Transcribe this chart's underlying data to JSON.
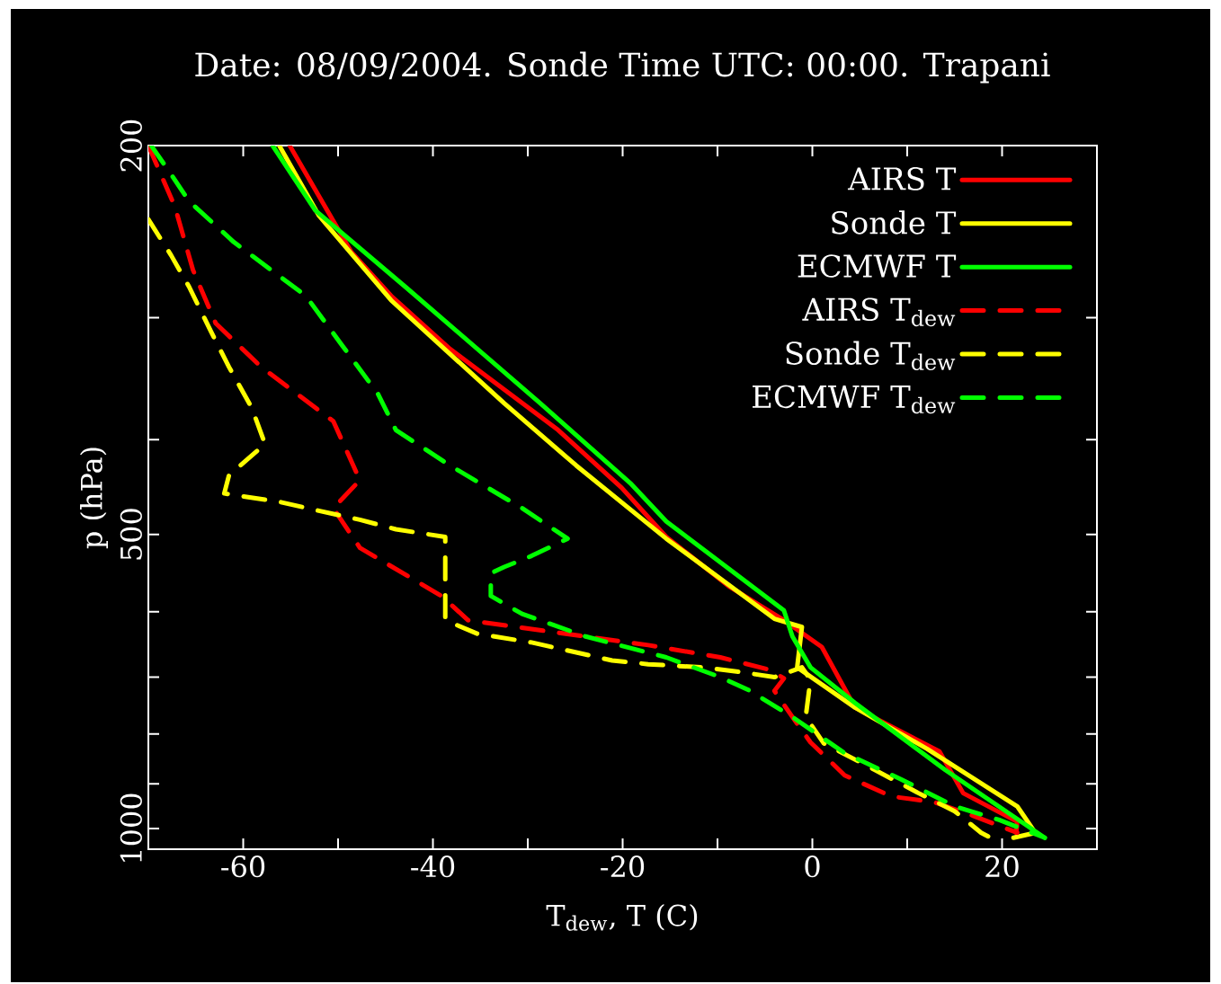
{
  "chart_data": {
    "type": "line",
    "title": "Date: 08/09/2004. Sonde Time UTC: 00:00. Trapani",
    "xlabel": "T$_{dew}$, T (C)",
    "ylabel": "p (hPa)",
    "log": "y",
    "legend": "top right",
    "grid": false,
    "xlim": [
      -70,
      30
    ],
    "ylim": [
      1050,
      200
    ],
    "xticks": [
      {
        "value": -70,
        "label": null
      },
      -60,
      {
        "value": -50,
        "label": null
      },
      -40,
      {
        "value": -30,
        "label": null
      },
      -20,
      {
        "value": -10,
        "label": null
      },
      0,
      {
        "value": 10,
        "label": null
      },
      20,
      {
        "value": 30,
        "label": null
      }
    ],
    "yticks": [
      200,
      {
        "value": 300,
        "label": null
      },
      {
        "value": 400,
        "label": null
      },
      500,
      {
        "value": 600,
        "label": null
      },
      {
        "value": 700,
        "label": null
      },
      {
        "value": 800,
        "label": null
      },
      {
        "value": 900,
        "label": null
      },
      1000
    ],
    "series": [
      {
        "name": "AIRS T",
        "color": "#ff0000",
        "line_style": "solid",
        "x": [
          -55.1,
          -48.6,
          -44.4,
          -38.2,
          -26.8,
          -20.1,
          -15.4,
          -8.7,
          -3.0,
          1.0,
          4.5,
          13.4,
          15.9,
          21.6,
          21.5
        ],
        "values": [
          200,
          257,
          285,
          323,
          391,
          448,
          503,
          566,
          612,
          652,
          752,
          834,
          920,
          984,
          1010
        ]
      },
      {
        "name": "Sonde T",
        "color": "#ffff00",
        "line_style": "solid",
        "x": [
          -56.2,
          -52.0,
          -44.4,
          -32.5,
          -24.9,
          -15.4,
          -4.0,
          -1.1,
          -1.6,
          4.5,
          12.1,
          21.6,
          23.5,
          21.2
        ],
        "values": [
          200,
          236,
          288,
          367,
          425,
          505,
          610,
          622,
          684,
          752,
          829,
          949,
          1010,
          1022
        ]
      },
      {
        "name": "ECMWF T",
        "color": "#00ff00",
        "line_style": "solid",
        "x": [
          -56.9,
          -52.4,
          -42.9,
          -28.7,
          -19.2,
          -15.4,
          -3.0,
          -2.1,
          -0.2,
          4.5,
          14.0,
          24.5
        ],
        "values": [
          200,
          233,
          279,
          367,
          443,
          485,
          598,
          636,
          684,
          744,
          871,
          1022
        ]
      },
      {
        "name": "AIRS T$_{dew}$",
        "color": "#ff0000",
        "line_style": "dashed",
        "x": [
          -70,
          -67.2,
          -65.3,
          -62.9,
          -58.1,
          -50.5,
          -47.7,
          -50.5,
          -47.7,
          -39.1,
          -36.3,
          -29.6,
          -17.3,
          -9.7,
          -4.5,
          -3.0,
          -4.0,
          -2.1,
          -0.2,
          3.4,
          8.3,
          12.9,
          16.9,
          21.6
        ],
        "values": [
          200,
          231,
          268,
          304,
          337,
          383,
          440,
          470,
          516,
          578,
          612,
          625,
          649,
          668,
          688,
          702,
          723,
          769,
          816,
          882,
          927,
          940,
          970,
          1010
        ]
      },
      {
        "name": "Sonde T$_{dew}$",
        "color": "#ffff00",
        "line_style": "dashed",
        "x": [
          -70,
          -67.6,
          -65.7,
          -63.4,
          -61.5,
          -59.1,
          -57.7,
          -61.5,
          -62,
          -56.2,
          -52.4,
          -47.7,
          -43.9,
          -38.7,
          -38.7,
          -35.3,
          -29.6,
          -21.1,
          -17.3,
          -11.6,
          -7.8,
          -4.0,
          -1.1,
          -0.2,
          -0.7,
          1.2,
          6.5,
          11.2,
          15.0,
          17.8,
          18.8
        ],
        "values": [
          238,
          259,
          279,
          310,
          337,
          371,
          404,
          435,
          454,
          463,
          472,
          483,
          494,
          503,
          612,
          632,
          645,
          673,
          679,
          684,
          691,
          700,
          684,
          704,
          769,
          818,
          870,
          920,
          960,
          1010,
          1022
        ]
      },
      {
        "name": "ECMWF T$_{dew}$",
        "color": "#00ff00",
        "line_style": "dashed",
        "x": [
          -69.7,
          -67.6,
          -65.7,
          -61,
          -53.4,
          -49.6,
          -45.8,
          -43.9,
          -38.2,
          -30.6,
          -25.8,
          -29.6,
          -32.5,
          -33.9,
          -33.9,
          -30.6,
          -23.9,
          -15.4,
          -9.7,
          -6.8,
          -2.1,
          3.4,
          9.3,
          15.0,
          19.7,
          24.5
        ],
        "values": [
          200,
          214,
          228,
          251,
          285,
          320,
          359,
          391,
          425,
          470,
          505,
          526,
          540,
          548,
          578,
          603,
          636,
          668,
          700,
          721,
          769,
          837,
          890,
          949,
          980,
          1022
        ]
      }
    ]
  }
}
